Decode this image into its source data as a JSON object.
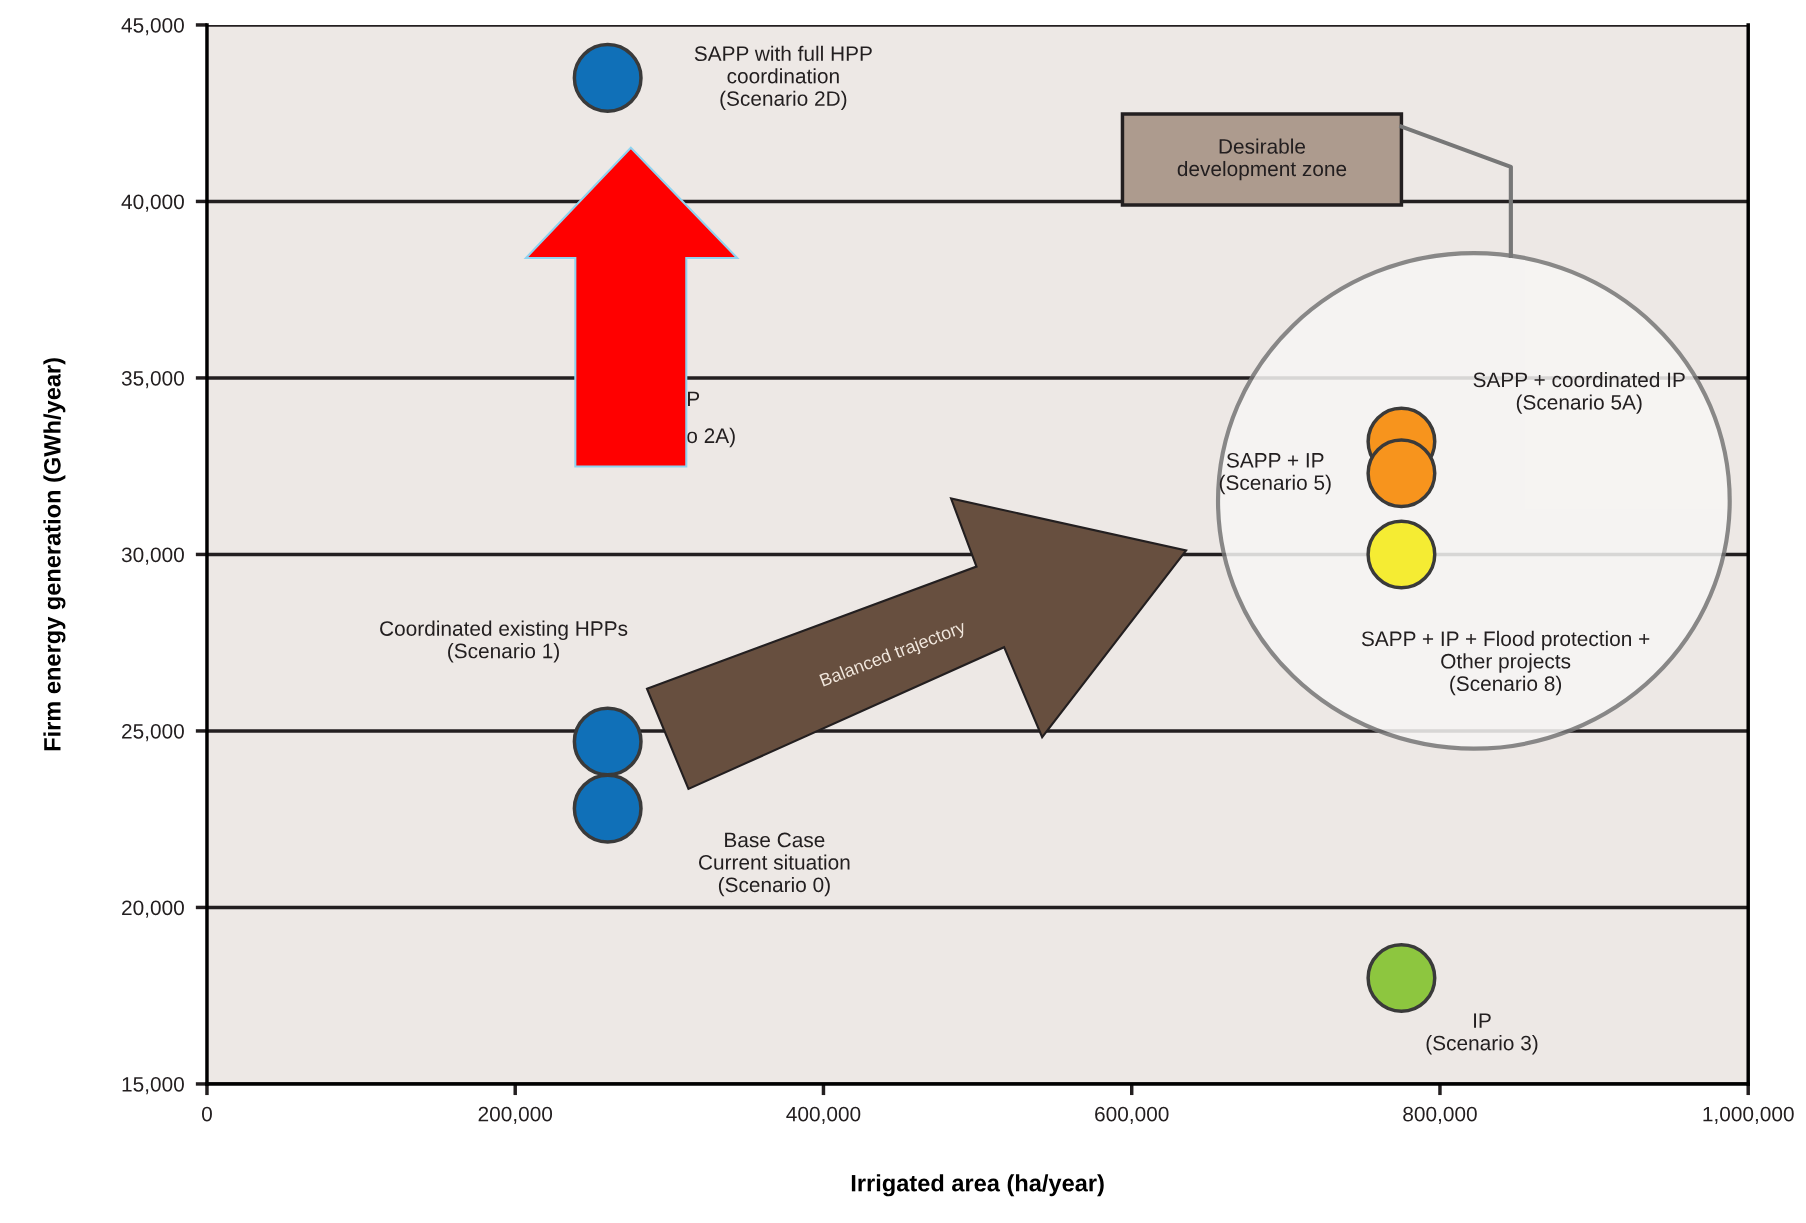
{
  "chart_data": {
    "type": "scatter",
    "xlabel": "Irrigated area (ha/year)",
    "ylabel": "Firm energy generation (GWh/year)",
    "xlim": [
      0,
      1000000
    ],
    "xticks": [
      0,
      {
        "value": 200000,
        "label": "200,000"
      },
      {
        "value": 400000,
        "label": "400,000"
      },
      {
        "value": 600000,
        "label": "600,000"
      },
      {
        "value": 800000,
        "label": "800,000"
      },
      {
        "value": 1000000,
        "label": "1,000,000"
      }
    ],
    "ylim": [
      15000,
      45000
    ],
    "yticks": [
      {
        "value": 15000,
        "label": "15,000"
      },
      {
        "value": 20000,
        "label": "20,000"
      },
      {
        "value": 25000,
        "label": "25,000"
      },
      {
        "value": 30000,
        "label": "30,000"
      },
      {
        "value": 35000,
        "label": "35,000"
      },
      {
        "value": 40000,
        "label": "40,000"
      },
      {
        "value": 45000,
        "label": "45,000"
      }
    ],
    "grid": "y",
    "marker": "circle",
    "x": [
      260000,
      775000
    ],
    "series": [
      {
        "name": "SAPP with full HPP\ncoordination\n(Scenario 2D)",
        "color": "#1070b8",
        "values": [
          43500,
          null
        ]
      },
      {
        "name": "Coordinated existing HPPs\n(Scenario 1)",
        "color": "#1070b8",
        "values": [
          24700,
          null
        ]
      },
      {
        "name": "Base Case\nCurrent situation\n(Scenario 0)",
        "color": "#1070b8",
        "values": [
          22800,
          null
        ]
      },
      {
        "name": "SAPP + coordinated IP\n(Scenario 5A)",
        "color": "#f7941d",
        "values": [
          null,
          33200
        ]
      },
      {
        "name": "SAPP + IP\n(Scenario 5)",
        "color": "#f7941d",
        "values": [
          null,
          32300
        ]
      },
      {
        "name": "SAPP + IP + Flood protection +\nOther projects\n(Scenario 8)",
        "color": "#f5ec33",
        "values": [
          null,
          30000
        ]
      },
      {
        "name": "IP\n(Scenario 3)",
        "color": "#8dc63f",
        "values": [
          null,
          18000
        ]
      }
    ],
    "annotations": [
      "Desirable\ndevelopment zone",
      "Balanced trajectory",
      "P",
      "o 2A)"
    ]
  }
}
